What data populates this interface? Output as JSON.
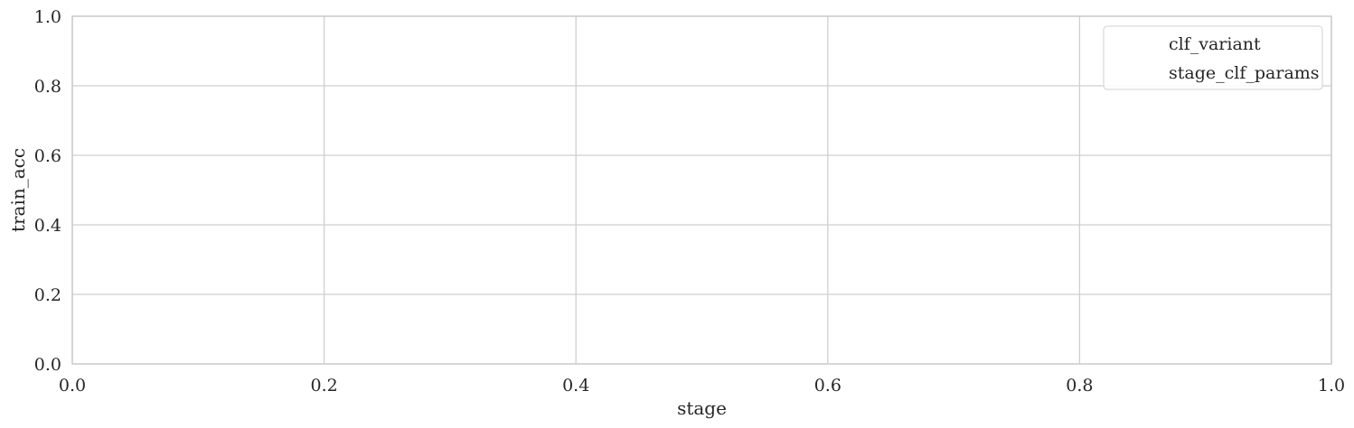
{
  "chart_data": {
    "type": "line",
    "title": "",
    "xlabel": "stage",
    "ylabel": "train_acc",
    "xlim": [
      0.0,
      1.0
    ],
    "ylim": [
      0.0,
      1.0
    ],
    "xticks": [
      "0.0",
      "0.2",
      "0.4",
      "0.6",
      "0.8",
      "1.0"
    ],
    "yticks": [
      "0.0",
      "0.2",
      "0.4",
      "0.6",
      "0.8",
      "1.0"
    ],
    "grid": true,
    "legend_position": "top-right",
    "legend_entries": [
      "clf_variant",
      "stage_clf_params"
    ],
    "series": []
  }
}
